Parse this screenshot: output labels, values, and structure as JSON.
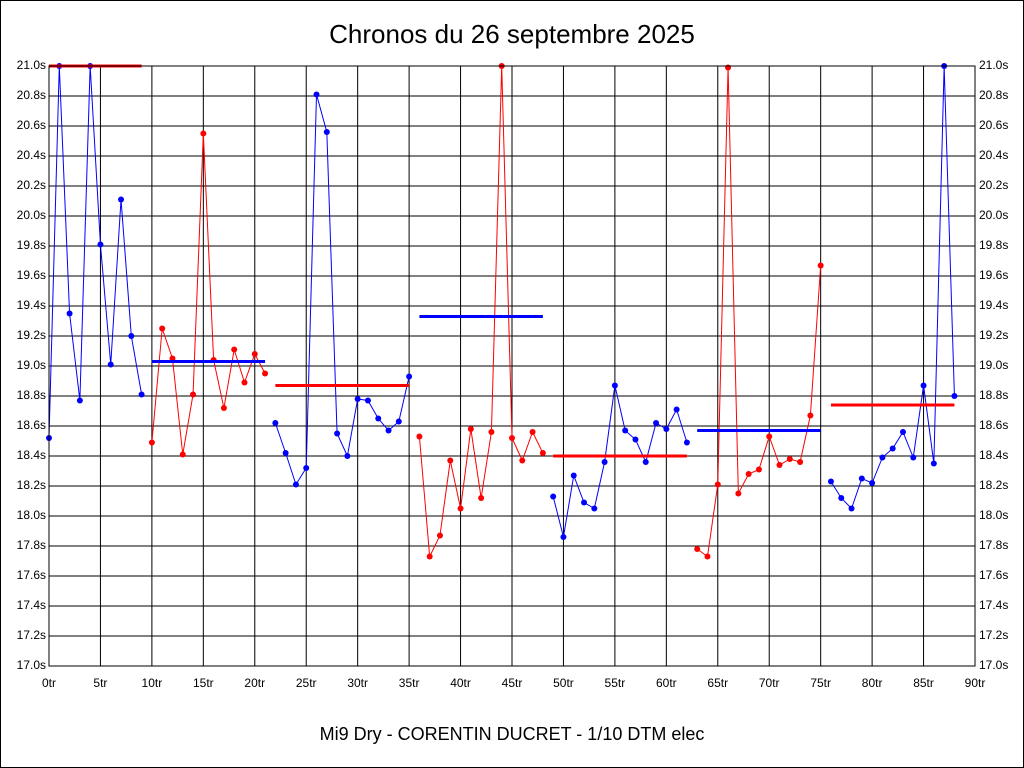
{
  "chart_data": {
    "type": "line",
    "title": "Chronos du 26 septembre 2025",
    "xlabel": "Mi9 Dry - CORENTIN DUCRET - 1/10 DTM elec",
    "xlim": [
      0,
      90
    ],
    "ylim": [
      17,
      21
    ],
    "grid": true,
    "right_axis_labels": true,
    "xticks": [
      {
        "value": 0,
        "label": "0tr"
      },
      {
        "value": 5,
        "label": "5tr"
      },
      {
        "value": 10,
        "label": "10tr"
      },
      {
        "value": 15,
        "label": "15tr"
      },
      {
        "value": 20,
        "label": "20tr"
      },
      {
        "value": 25,
        "label": "25tr"
      },
      {
        "value": 30,
        "label": "30tr"
      },
      {
        "value": 35,
        "label": "35tr"
      },
      {
        "value": 40,
        "label": "40tr"
      },
      {
        "value": 45,
        "label": "45tr"
      },
      {
        "value": 50,
        "label": "50tr"
      },
      {
        "value": 55,
        "label": "55tr"
      },
      {
        "value": 60,
        "label": "60tr"
      },
      {
        "value": 65,
        "label": "65tr"
      },
      {
        "value": 70,
        "label": "70tr"
      },
      {
        "value": 75,
        "label": "75tr"
      },
      {
        "value": 80,
        "label": "80tr"
      },
      {
        "value": 85,
        "label": "85tr"
      },
      {
        "value": 90,
        "label": "90tr"
      }
    ],
    "yticks": [
      {
        "value": 17.0,
        "label": "17.0s"
      },
      {
        "value": 17.2,
        "label": "17.2s"
      },
      {
        "value": 17.4,
        "label": "17.4s"
      },
      {
        "value": 17.6,
        "label": "17.6s"
      },
      {
        "value": 17.8,
        "label": "17.8s"
      },
      {
        "value": 18.0,
        "label": "18.0s"
      },
      {
        "value": 18.2,
        "label": "18.2s"
      },
      {
        "value": 18.4,
        "label": "18.4s"
      },
      {
        "value": 18.6,
        "label": "18.6s"
      },
      {
        "value": 18.8,
        "label": "18.8s"
      },
      {
        "value": 19.0,
        "label": "19.0s"
      },
      {
        "value": 19.2,
        "label": "19.2s"
      },
      {
        "value": 19.4,
        "label": "19.4s"
      },
      {
        "value": 19.6,
        "label": "19.6s"
      },
      {
        "value": 19.8,
        "label": "19.8s"
      },
      {
        "value": 20.0,
        "label": "20.0s"
      },
      {
        "value": 20.2,
        "label": "20.2s"
      },
      {
        "value": 20.4,
        "label": "20.4s"
      },
      {
        "value": 20.6,
        "label": "20.6s"
      },
      {
        "value": 20.8,
        "label": "20.8s"
      },
      {
        "value": 21.0,
        "label": "21.0s"
      }
    ],
    "series": [
      {
        "color": "#0000ff",
        "x": [
          0,
          1,
          2,
          3,
          4,
          5,
          6,
          7,
          8,
          9
        ],
        "values": [
          18.52,
          21.0,
          19.35,
          18.77,
          21.0,
          19.81,
          19.01,
          20.11,
          19.2,
          18.81
        ]
      },
      {
        "color": "#ff0000",
        "x": [
          10,
          11,
          12,
          13,
          14,
          15,
          16,
          17,
          18,
          19,
          20,
          21
        ],
        "values": [
          18.49,
          19.25,
          19.05,
          18.41,
          18.81,
          20.55,
          19.04,
          18.72,
          19.11,
          18.89,
          19.08,
          18.95
        ]
      },
      {
        "color": "#0000ff",
        "x": [
          22,
          23,
          24,
          25,
          26,
          27,
          28,
          29,
          30,
          31,
          32,
          33,
          34,
          35
        ],
        "values": [
          18.62,
          18.42,
          18.21,
          18.32,
          20.81,
          20.56,
          18.55,
          18.4,
          18.78,
          18.77,
          18.65,
          18.57,
          18.63,
          18.93
        ]
      },
      {
        "color": "#ff0000",
        "x": [
          36,
          37,
          38,
          39,
          40,
          41,
          42,
          43,
          44,
          45,
          46,
          47,
          48
        ],
        "values": [
          18.53,
          17.73,
          17.87,
          18.37,
          18.05,
          18.58,
          18.12,
          18.56,
          21.0,
          18.52,
          18.37,
          18.56,
          18.42
        ]
      },
      {
        "color": "#0000ff",
        "x": [
          49,
          50,
          51,
          52,
          53,
          54,
          55,
          56,
          57,
          58,
          59,
          60,
          61,
          62
        ],
        "values": [
          18.13,
          17.86,
          18.27,
          18.09,
          18.05,
          18.36,
          18.87,
          18.57,
          18.51,
          18.36,
          18.62,
          18.58,
          18.71,
          18.49
        ]
      },
      {
        "color": "#ff0000",
        "x": [
          63,
          64,
          65,
          66,
          67,
          68,
          69,
          70,
          71,
          72,
          73,
          74,
          75
        ],
        "values": [
          17.78,
          17.73,
          18.21,
          20.99,
          18.15,
          18.28,
          18.31,
          18.53,
          18.34,
          18.38,
          18.36,
          18.67,
          19.67
        ]
      },
      {
        "color": "#0000ff",
        "x": [
          76,
          77,
          78,
          79,
          80,
          81,
          82,
          83,
          84,
          85,
          86,
          87,
          88
        ],
        "values": [
          18.23,
          18.12,
          18.05,
          18.25,
          18.22,
          18.39,
          18.45,
          18.56,
          18.39,
          18.87,
          18.35,
          21.0,
          18.8
        ]
      }
    ],
    "average_lines": [
      {
        "color": "#ff0000",
        "x_start": 0,
        "x_end": 9,
        "value": 21.0
      },
      {
        "color": "#0000ff",
        "x_start": 10,
        "x_end": 21,
        "value": 19.03
      },
      {
        "color": "#ff0000",
        "x_start": 22,
        "x_end": 35,
        "value": 18.87
      },
      {
        "color": "#0000ff",
        "x_start": 36,
        "x_end": 48,
        "value": 19.33
      },
      {
        "color": "#ff0000",
        "x_start": 49,
        "x_end": 62,
        "value": 18.4
      },
      {
        "color": "#0000ff",
        "x_start": 63,
        "x_end": 75,
        "value": 18.57
      },
      {
        "color": "#ff0000",
        "x_start": 76,
        "x_end": 88,
        "value": 18.74
      }
    ]
  }
}
